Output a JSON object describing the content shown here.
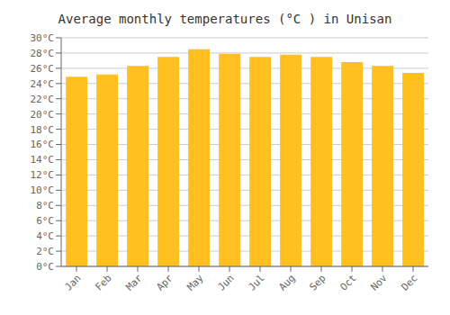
{
  "chart_data": {
    "type": "bar",
    "title": "Average monthly temperatures (°C ) in Unisan",
    "categories": [
      "Jan",
      "Feb",
      "Mar",
      "Apr",
      "May",
      "Jun",
      "Jul",
      "Aug",
      "Sep",
      "Oct",
      "Nov",
      "Dec"
    ],
    "values": [
      24.9,
      25.2,
      26.3,
      27.5,
      28.5,
      27.9,
      27.5,
      27.8,
      27.5,
      26.8,
      26.3,
      25.4
    ],
    "color": "#FFC020",
    "ylim": [
      0,
      30
    ],
    "yticks": [
      {
        "value": 0,
        "label": "0°C"
      },
      {
        "value": 2,
        "label": "2°C"
      },
      {
        "value": 4,
        "label": "4°C"
      },
      {
        "value": 6,
        "label": "6°C"
      },
      {
        "value": 8,
        "label": "8°C"
      },
      {
        "value": 10,
        "label": "10°C"
      },
      {
        "value": 12,
        "label": "12°C"
      },
      {
        "value": 14,
        "label": "14°C"
      },
      {
        "value": 16,
        "label": "16°C"
      },
      {
        "value": 18,
        "label": "18°C"
      },
      {
        "value": 20,
        "label": "20°C"
      },
      {
        "value": 22,
        "label": "22°C"
      },
      {
        "value": 24,
        "label": "24°C"
      },
      {
        "value": 26,
        "label": "26°C"
      },
      {
        "value": 28,
        "label": "28°C"
      },
      {
        "value": 30,
        "label": "30°C"
      }
    ],
    "grid": true
  }
}
